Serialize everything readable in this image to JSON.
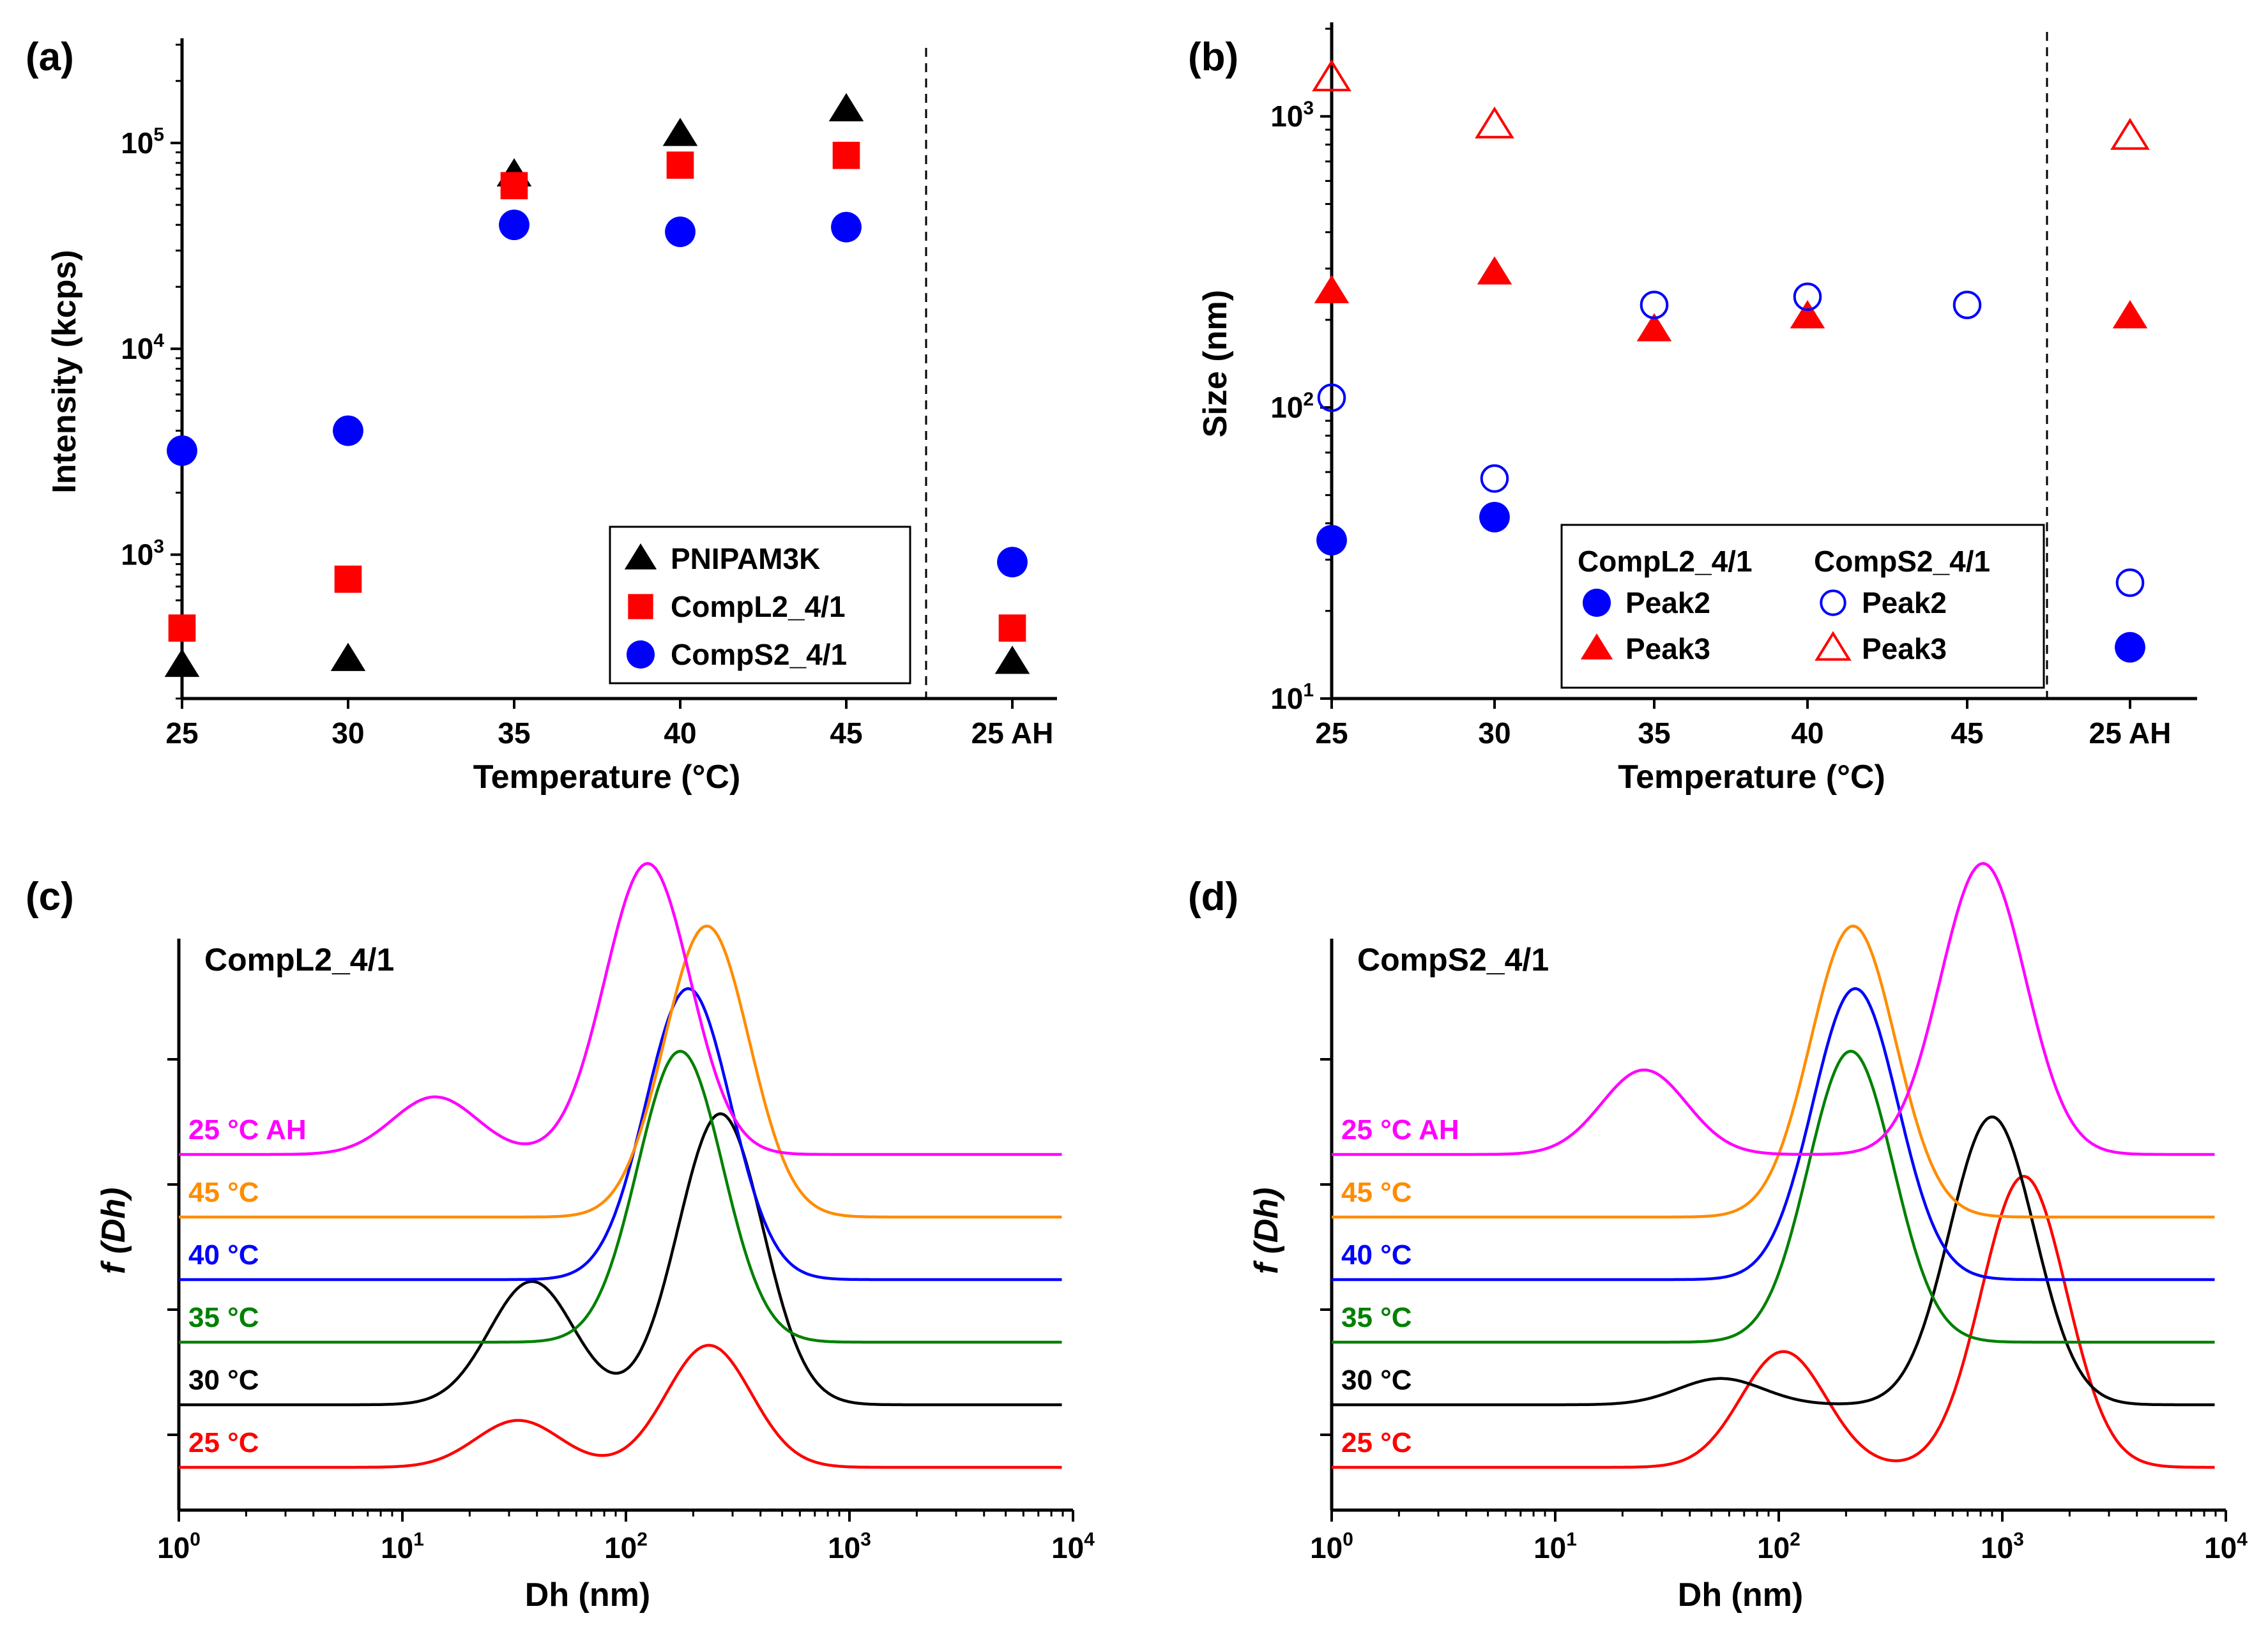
{
  "chart_data": [
    {
      "panel": "(a)",
      "type": "scatter",
      "xlabel": "Temperature (°C)",
      "ylabel": "Intensity (kcps)",
      "yscale": "log",
      "ylim": [
        200,
        300000
      ],
      "categories": [
        "25",
        "30",
        "35",
        "40",
        "45",
        "25 AH"
      ],
      "yticks": [
        {
          "label": "10",
          "exp": "3",
          "value": 1000
        },
        {
          "label": "10",
          "exp": "4",
          "value": 10000
        },
        {
          "label": "10",
          "exp": "5",
          "value": 100000
        }
      ],
      "legend_position": "bottom-right",
      "series": [
        {
          "name": "PNIPAM3K",
          "marker": "triangle",
          "fill": true,
          "color": "#000000",
          "values": [
            290,
            310,
            70000,
            110000,
            145000,
            300
          ]
        },
        {
          "name": "CompL2_4/1",
          "marker": "square",
          "fill": true,
          "color": "#ff0000",
          "values": [
            440,
            760,
            62000,
            78000,
            87000,
            440
          ]
        },
        {
          "name": "CompS2_4/1",
          "marker": "circle",
          "fill": true,
          "color": "#0000ff",
          "values": [
            3200,
            4000,
            40000,
            37000,
            39000,
            920
          ]
        }
      ]
    },
    {
      "panel": "(b)",
      "type": "scatter",
      "xlabel": "Temperature (°C)",
      "ylabel": "Size (nm)",
      "yscale": "log",
      "ylim": [
        10,
        2000
      ],
      "categories": [
        "25",
        "30",
        "35",
        "40",
        "45",
        "25 AH"
      ],
      "yticks": [
        {
          "label": "10",
          "exp": "1",
          "value": 10
        },
        {
          "label": "10",
          "exp": "2",
          "value": 100
        },
        {
          "label": "10",
          "exp": "3",
          "value": 1000
        }
      ],
      "legend_position": "bottom-right",
      "legend_headers": [
        "CompL2_4/1",
        "CompS2_4/1"
      ],
      "series": [
        {
          "name": "Peak2",
          "group": "CompL2_4/1",
          "marker": "circle",
          "fill": true,
          "color": "#0000ff",
          "values": [
            35,
            42,
            null,
            null,
            null,
            15
          ]
        },
        {
          "name": "Peak3",
          "group": "CompL2_4/1",
          "marker": "triangle",
          "fill": true,
          "color": "#ff0000",
          "values": [
            250,
            290,
            185,
            205,
            null,
            205
          ]
        },
        {
          "name": "Peak2",
          "group": "CompS2_4/1",
          "marker": "circle",
          "fill": false,
          "color": "#0000ff",
          "values": [
            108,
            57,
            225,
            240,
            225,
            25
          ]
        },
        {
          "name": "Peak3",
          "group": "CompS2_4/1",
          "marker": "triangle",
          "fill": false,
          "color": "#ff0000",
          "values": [
            1350,
            930,
            null,
            null,
            null,
            850
          ]
        }
      ]
    },
    {
      "panel": "(c)",
      "type": "line",
      "title": "CompL2_4/1",
      "xlabel": "Dh (nm)",
      "ylabel": "f (Dh)",
      "xscale": "log",
      "xlim": [
        1,
        10000
      ],
      "xticks": [
        {
          "label": "10",
          "exp": "0",
          "value": 1
        },
        {
          "label": "10",
          "exp": "1",
          "value": 10
        },
        {
          "label": "10",
          "exp": "2",
          "value": 100
        },
        {
          "label": "10",
          "exp": "3",
          "value": 1000
        },
        {
          "label": "10",
          "exp": "4",
          "value": 10000
        }
      ],
      "series": [
        {
          "name": "25 °C",
          "color": "#ff0000",
          "baseline": 0,
          "peaks": [
            {
              "center": 33,
              "height": 0.75
            },
            {
              "center": 235,
              "height": 1.95
            }
          ]
        },
        {
          "name": "30 °C",
          "color": "#000000",
          "baseline": 1,
          "peaks": [
            {
              "center": 38,
              "height": 1.97
            },
            {
              "center": 265,
              "height": 4.65
            }
          ]
        },
        {
          "name": "35 °C",
          "color": "#008000",
          "baseline": 2,
          "peaks": [
            {
              "center": 175,
              "height": 4.65
            }
          ]
        },
        {
          "name": "40 °C",
          "color": "#0000ff",
          "baseline": 3,
          "peaks": [
            {
              "center": 190,
              "height": 4.65
            }
          ]
        },
        {
          "name": "45 °C",
          "color": "#ff8c00",
          "baseline": 4,
          "peaks": [
            {
              "center": 230,
              "height": 4.65
            }
          ]
        },
        {
          "name": "25 °C AH",
          "color": "#ff00ff",
          "baseline": 5,
          "peaks": [
            {
              "center": 14,
              "height": 0.92
            },
            {
              "center": 125,
              "height": 4.65
            }
          ]
        }
      ]
    },
    {
      "panel": "(d)",
      "type": "line",
      "title": "CompS2_4/1",
      "xlabel": "Dh (nm)",
      "ylabel": "f (Dh)",
      "xscale": "log",
      "xlim": [
        1,
        10000
      ],
      "xticks": [
        {
          "label": "10",
          "exp": "0",
          "value": 1
        },
        {
          "label": "10",
          "exp": "1",
          "value": 10
        },
        {
          "label": "10",
          "exp": "2",
          "value": 100
        },
        {
          "label": "10",
          "exp": "3",
          "value": 1000
        },
        {
          "label": "10",
          "exp": "4",
          "value": 10000
        }
      ],
      "series": [
        {
          "name": "25 °C",
          "color": "#ff0000",
          "baseline": 0,
          "peaks": [
            {
              "center": 105,
              "height": 1.85
            },
            {
              "center": 1250,
              "height": 4.65
            }
          ]
        },
        {
          "name": "30 °C",
          "color": "#000000",
          "baseline": 1,
          "peaks": [
            {
              "center": 55,
              "height": 0.42
            },
            {
              "center": 900,
              "height": 4.6
            }
          ]
        },
        {
          "name": "35 °C",
          "color": "#008000",
          "baseline": 2,
          "peaks": [
            {
              "center": 210,
              "height": 4.65
            }
          ]
        },
        {
          "name": "40 °C",
          "color": "#0000ff",
          "baseline": 3,
          "peaks": [
            {
              "center": 220,
              "height": 4.65
            }
          ]
        },
        {
          "name": "45 °C",
          "color": "#ff8c00",
          "baseline": 4,
          "peaks": [
            {
              "center": 215,
              "height": 4.65
            }
          ]
        },
        {
          "name": "25 °C AH",
          "color": "#ff00ff",
          "baseline": 5,
          "peaks": [
            {
              "center": 25,
              "height": 1.35
            },
            {
              "center": 820,
              "height": 4.65
            }
          ]
        }
      ]
    }
  ]
}
